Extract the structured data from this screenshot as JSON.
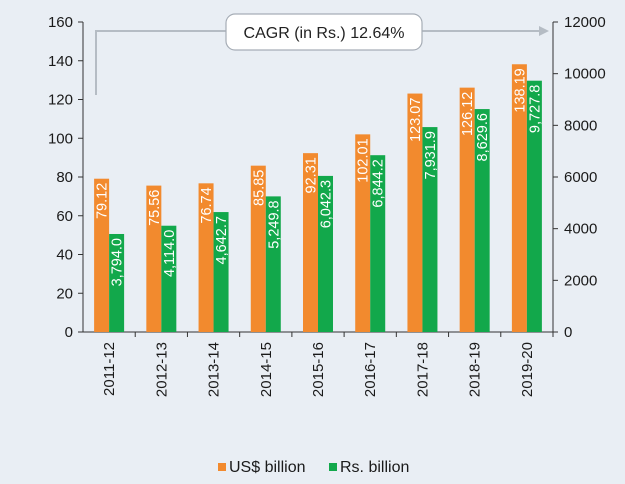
{
  "chart_data": {
    "type": "bar",
    "categories": [
      "2011-12",
      "2012-13",
      "2013-14",
      "2014-15",
      "2015-16",
      "2016-17",
      "2017-18",
      "2018-19",
      "2019-20"
    ],
    "series": [
      {
        "name": "US$ billion",
        "axis": "left",
        "color": "#f28a2e",
        "values": [
          79.12,
          75.56,
          76.74,
          85.85,
          92.31,
          102.01,
          123.07,
          126.12,
          138.19
        ],
        "labels": [
          "79.12",
          "75.56",
          "76.74",
          "85.85",
          "92.31",
          "102.01",
          "123.07",
          "126.12",
          "138.19"
        ]
      },
      {
        "name": "Rs. billion",
        "axis": "right",
        "color": "#12a84b",
        "values": [
          3794.0,
          4114.0,
          4642.7,
          5249.8,
          6042.3,
          6844.2,
          7931.9,
          8629.6,
          9727.8
        ],
        "labels": [
          "3,794.0",
          "4,114.0",
          "4,642.7",
          "5,249.8",
          "6,042.3",
          "6,844.2",
          "7,931.9",
          "8,629.6",
          "9,727.8"
        ]
      }
    ],
    "y_left": {
      "min": 0,
      "max": 160,
      "step": 20,
      "ticks": [
        "0",
        "20",
        "40",
        "60",
        "80",
        "100",
        "120",
        "140",
        "160"
      ]
    },
    "y_right": {
      "min": 0,
      "max": 12000,
      "step": 2000,
      "ticks": [
        "0",
        "2000",
        "4000",
        "6000",
        "8000",
        "10000",
        "12000"
      ]
    },
    "legend": {
      "position": "bottom",
      "items": [
        "US$ billion",
        "Rs. billion"
      ]
    },
    "annotation": {
      "text": "CAGR (in Rs.) 12.64%"
    },
    "title": "",
    "xlabel": "",
    "ylabel": ""
  }
}
